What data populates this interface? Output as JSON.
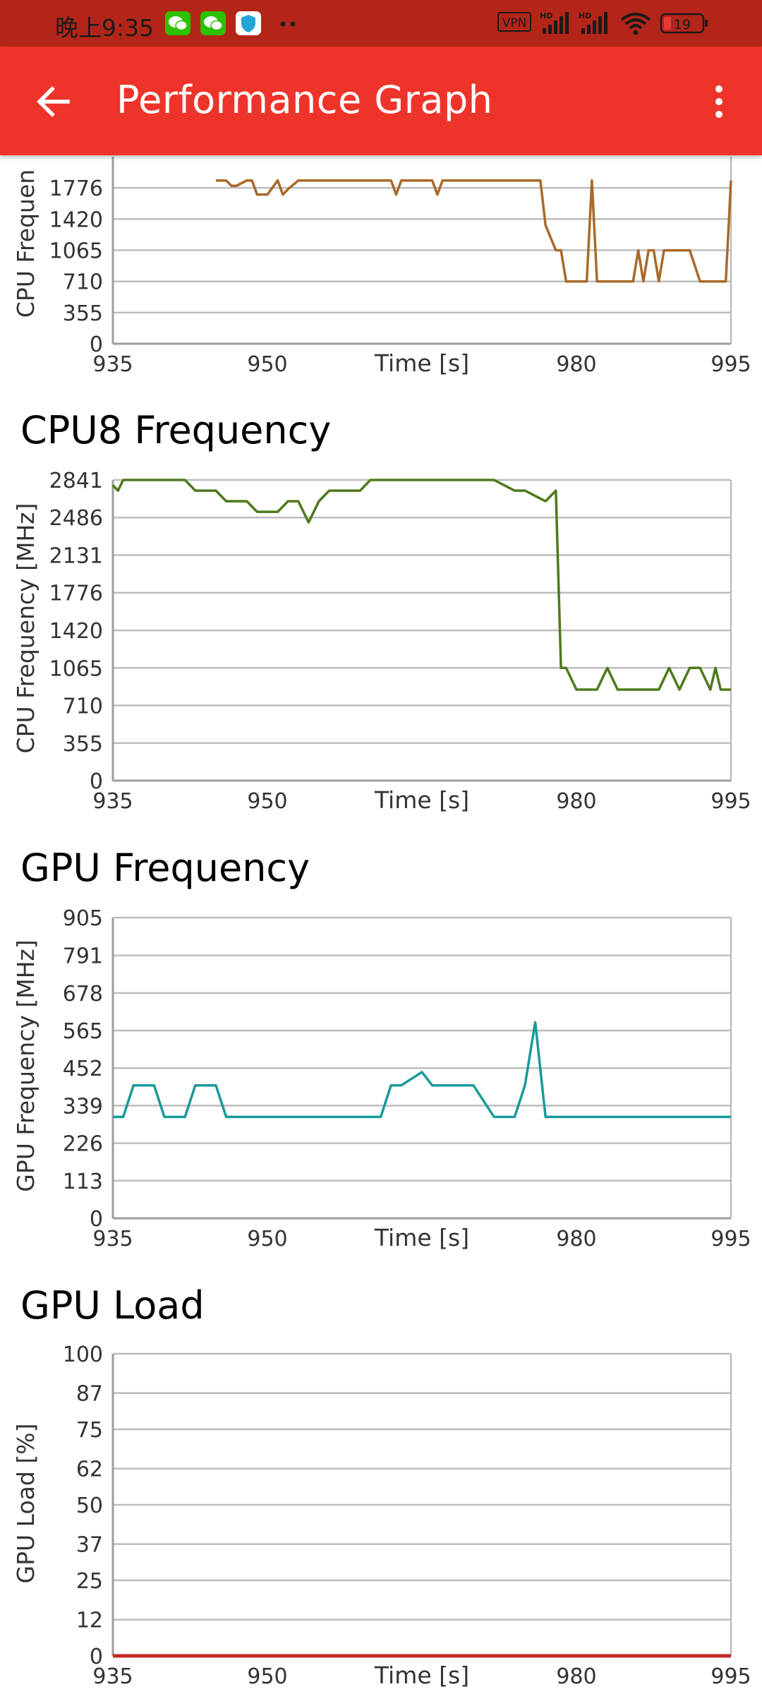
{
  "status_bar": {
    "time": "晚上9:35",
    "vpn_label": "VPN",
    "hd1_label": "HD",
    "hd2_label": "HD",
    "battery": "19",
    "icons": [
      "wechat-icon",
      "wechat-icon",
      "shield-app-icon",
      "more-notifications-icon",
      "vpn-icon",
      "signal-icon",
      "signal-icon",
      "wifi-icon",
      "battery-icon"
    ]
  },
  "app_bar": {
    "title": "Performance Graph",
    "back_icon": "arrow-back-icon",
    "menu_icon": "more-vert-icon"
  },
  "chart_data": [
    {
      "id": "cpu-partial",
      "type": "line",
      "title": "",
      "xlabel": "Time [s]",
      "ylabel": "CPU Frequen",
      "xlim": [
        935,
        995
      ],
      "ylim": [
        0,
        2131
      ],
      "x_ticks": [
        "935",
        "950",
        "980",
        "995"
      ],
      "y_ticks": [
        "0",
        "355",
        "710",
        "1065",
        "1420",
        "1776"
      ],
      "color": "#a8692a",
      "series": [
        {
          "x": [
            945,
            946,
            946.5,
            947,
            948,
            948.5,
            949,
            950,
            951,
            951.5,
            952,
            953,
            955,
            956,
            960,
            962,
            962.5,
            963,
            965,
            966,
            966.5,
            967,
            970,
            975,
            976,
            976.5,
            977,
            978,
            978.5,
            979,
            980,
            980.5,
            981,
            981.5,
            982,
            983,
            984,
            985,
            985.5,
            986,
            986.5,
            987,
            987.5,
            988,
            988.5,
            989,
            989.5,
            990,
            991,
            992,
            992.5,
            993,
            994,
            994.5,
            995
          ],
          "values": [
            1860,
            1860,
            1800,
            1800,
            1860,
            1860,
            1700,
            1700,
            1860,
            1700,
            1760,
            1860,
            1860,
            1860,
            1860,
            1860,
            1700,
            1860,
            1860,
            1860,
            1700,
            1860,
            1860,
            1860,
            1860,
            1860,
            1350,
            1065,
            1065,
            710,
            710,
            710,
            710,
            1860,
            710,
            710,
            710,
            710,
            710,
            1065,
            710,
            1065,
            1065,
            710,
            1065,
            1065,
            1065,
            1065,
            1065,
            710,
            710,
            710,
            710,
            710,
            1860
          ]
        }
      ]
    },
    {
      "id": "cpu8",
      "type": "line",
      "title": "CPU8 Frequency",
      "xlabel": "Time [s]",
      "ylabel": "CPU Frequency [MHz]",
      "xlim": [
        935,
        995
      ],
      "ylim": [
        0,
        2841
      ],
      "x_ticks": [
        "935",
        "950",
        "980",
        "995"
      ],
      "y_ticks": [
        "0",
        "355",
        "710",
        "1065",
        "1420",
        "1776",
        "2131",
        "2486",
        "2841"
      ],
      "color": "#4e7a1c",
      "series": [
        {
          "x": [
            935,
            935.5,
            936,
            937,
            942,
            943,
            945,
            946,
            948,
            949,
            950,
            951,
            952,
            953,
            954,
            955,
            956,
            957,
            959,
            960,
            961,
            962,
            963,
            970,
            971,
            972,
            974,
            975,
            977,
            978,
            978.5,
            979,
            980,
            982,
            983,
            984,
            986,
            987,
            988,
            989,
            990,
            991,
            992,
            993,
            993.5,
            994,
            995
          ],
          "values": [
            2790,
            2740,
            2841,
            2841,
            2841,
            2740,
            2740,
            2640,
            2640,
            2540,
            2540,
            2540,
            2640,
            2640,
            2440,
            2640,
            2740,
            2740,
            2740,
            2841,
            2841,
            2841,
            2841,
            2841,
            2841,
            2841,
            2740,
            2740,
            2640,
            2740,
            1065,
            1065,
            860,
            860,
            1065,
            860,
            860,
            860,
            860,
            1065,
            860,
            1065,
            1065,
            860,
            1065,
            860,
            860
          ]
        }
      ]
    },
    {
      "id": "gpu-freq",
      "type": "line",
      "title": "GPU Frequency",
      "xlabel": "Time [s]",
      "ylabel": "GPU Frequency [MHz]",
      "xlim": [
        935,
        995
      ],
      "ylim": [
        0,
        905
      ],
      "x_ticks": [
        "935",
        "950",
        "980",
        "995"
      ],
      "y_ticks": [
        "0",
        "113",
        "226",
        "339",
        "452",
        "565",
        "678",
        "791",
        "905"
      ],
      "color": "#1a9a99",
      "series": [
        {
          "x": [
            935,
            936,
            937,
            939,
            940,
            942,
            943,
            945,
            946,
            959,
            960,
            961,
            962,
            963,
            965,
            966,
            967,
            968,
            970,
            972,
            973,
            974,
            975,
            976,
            977,
            978,
            979,
            980,
            985,
            990,
            994,
            995
          ],
          "values": [
            305,
            305,
            400,
            400,
            305,
            305,
            400,
            400,
            305,
            305,
            305,
            305,
            400,
            400,
            440,
            400,
            400,
            400,
            400,
            305,
            305,
            305,
            400,
            590,
            305,
            305,
            305,
            305,
            305,
            305,
            305,
            305
          ]
        }
      ]
    },
    {
      "id": "gpu-load",
      "type": "line",
      "title": "GPU Load",
      "xlabel": "Time [s]",
      "ylabel": "GPU Load [%]",
      "xlim": [
        935,
        995
      ],
      "ylim": [
        0,
        100
      ],
      "x_ticks": [
        "935",
        "950",
        "980",
        "995"
      ],
      "y_ticks": [
        "0",
        "12",
        "25",
        "37",
        "50",
        "62",
        "75",
        "87",
        "100"
      ],
      "color": "#c62828",
      "series": [
        {
          "x": [
            935,
            995
          ],
          "values": [
            0,
            0
          ]
        }
      ]
    }
  ]
}
